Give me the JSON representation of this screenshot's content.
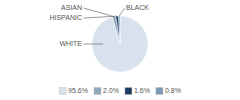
{
  "chart_data": {
    "type": "pie",
    "categories": [
      "WHITE",
      "ASIAN",
      "HISPANIC",
      "BLACK"
    ],
    "values": [
      95.6,
      2.0,
      1.6,
      0.8
    ],
    "value_labels": [
      "95.6%",
      "2.0%",
      "1.6%",
      "0.8%"
    ],
    "colors": [
      "#d8e2ee",
      "#8faabf",
      "#1e3a5f",
      "#7a9ab5"
    ],
    "legend": "bottom"
  }
}
